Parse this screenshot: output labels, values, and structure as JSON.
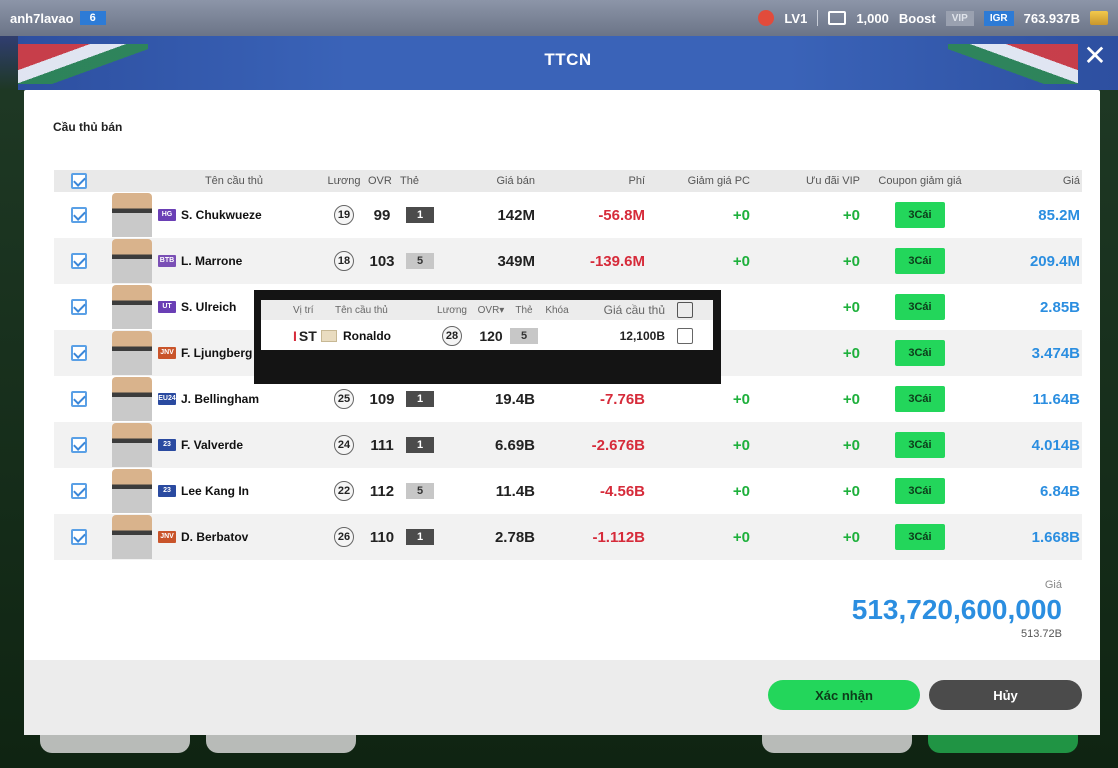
{
  "topbar": {
    "username": "anh7lavao",
    "user_level": "6",
    "lv": "LV1",
    "tokens": "1,000",
    "boost_label": "Boost",
    "vip_label": "VIP",
    "igr_label": "IGR",
    "balance": "763.937B"
  },
  "banner": {
    "title": "TTCN",
    "close_icon": "close-icon"
  },
  "modal": {
    "section_title": "Cầu thủ bán",
    "columns": {
      "name": "Tên cầu thủ",
      "salary": "Lương",
      "ovr": "OVR",
      "card": "Thẻ",
      "sell_price": "Giá bán",
      "fee": "Phí",
      "pc_discount": "Giảm giá PC",
      "vip_bonus": "Ưu đãi VIP",
      "coupon": "Coupon giảm giá",
      "price": "Giá"
    },
    "players": [
      {
        "name": "S. Chukwueze",
        "season": "HG",
        "season_color": "#6a3fb5",
        "salary": "19",
        "ovr": "99",
        "grade": "1",
        "grade_style": "dark",
        "sell_price": "142M",
        "fee": "-56.8M",
        "pc": "+0",
        "vip": "+0",
        "coupon": "3Cái",
        "price": "85.2M"
      },
      {
        "name": "L. Marrone",
        "season": "BTB",
        "season_color": "#7a4fb5",
        "salary": "18",
        "ovr": "103",
        "grade": "5",
        "grade_style": "light",
        "sell_price": "349M",
        "fee": "-139.6M",
        "pc": "+0",
        "vip": "+0",
        "coupon": "3Cái",
        "price": "209.4M"
      },
      {
        "name": "S. Ulreich",
        "season": "UT",
        "season_color": "#6a3fb5",
        "salary": "",
        "ovr": "",
        "grade": "",
        "grade_style": "dark",
        "sell_price": "",
        "fee": "",
        "pc": "",
        "vip": "+0",
        "coupon": "3Cái",
        "price": "2.85B"
      },
      {
        "name": "F. Ljungberg",
        "season": "JNV",
        "season_color": "#c9542a",
        "salary": "",
        "ovr": "",
        "grade": "",
        "grade_style": "dark",
        "sell_price": "",
        "fee": "",
        "pc": "",
        "vip": "+0",
        "coupon": "3Cái",
        "price": "3.474B"
      },
      {
        "name": "J. Bellingham",
        "season": "EU24",
        "season_color": "#2a4aa0",
        "salary": "25",
        "ovr": "109",
        "grade": "1",
        "grade_style": "dark",
        "sell_price": "19.4B",
        "fee": "-7.76B",
        "pc": "+0",
        "vip": "+0",
        "coupon": "3Cái",
        "price": "11.64B"
      },
      {
        "name": "F. Valverde",
        "season": "23",
        "season_color": "#2a4aa0",
        "salary": "24",
        "ovr": "111",
        "grade": "1",
        "grade_style": "dark",
        "sell_price": "6.69B",
        "fee": "-2.676B",
        "pc": "+0",
        "vip": "+0",
        "coupon": "3Cái",
        "price": "4.014B"
      },
      {
        "name": "Lee Kang In",
        "season": "23",
        "season_color": "#2a4aa0",
        "salary": "22",
        "ovr": "112",
        "grade": "5",
        "grade_style": "light",
        "sell_price": "11.4B",
        "fee": "-4.56B",
        "pc": "+0",
        "vip": "+0",
        "coupon": "3Cái",
        "price": "6.84B"
      },
      {
        "name": "D. Berbatov",
        "season": "JNV",
        "season_color": "#c9542a",
        "salary": "26",
        "ovr": "110",
        "grade": "1",
        "grade_style": "dark",
        "sell_price": "2.78B",
        "fee": "-1.112B",
        "pc": "+0",
        "vip": "+0",
        "coupon": "3Cái",
        "price": "1.668B"
      }
    ],
    "total_label": "Giá",
    "total_value": "513,720,600,000",
    "total_short": "513.72B",
    "confirm_label": "Xác nhận",
    "cancel_label": "Hủy"
  },
  "popup": {
    "columns": {
      "position": "Vị trí",
      "name": "Tên cầu thủ",
      "salary": "Lương",
      "ovr": "OVR▾",
      "card": "Thẻ",
      "lock": "Khóa",
      "player_price": "Giá cầu thủ"
    },
    "player": {
      "position_marker": "I",
      "position": "ST",
      "name": "Ronaldo",
      "salary": "28",
      "ovr": "120",
      "grade": "5",
      "price": "12,100B"
    }
  }
}
